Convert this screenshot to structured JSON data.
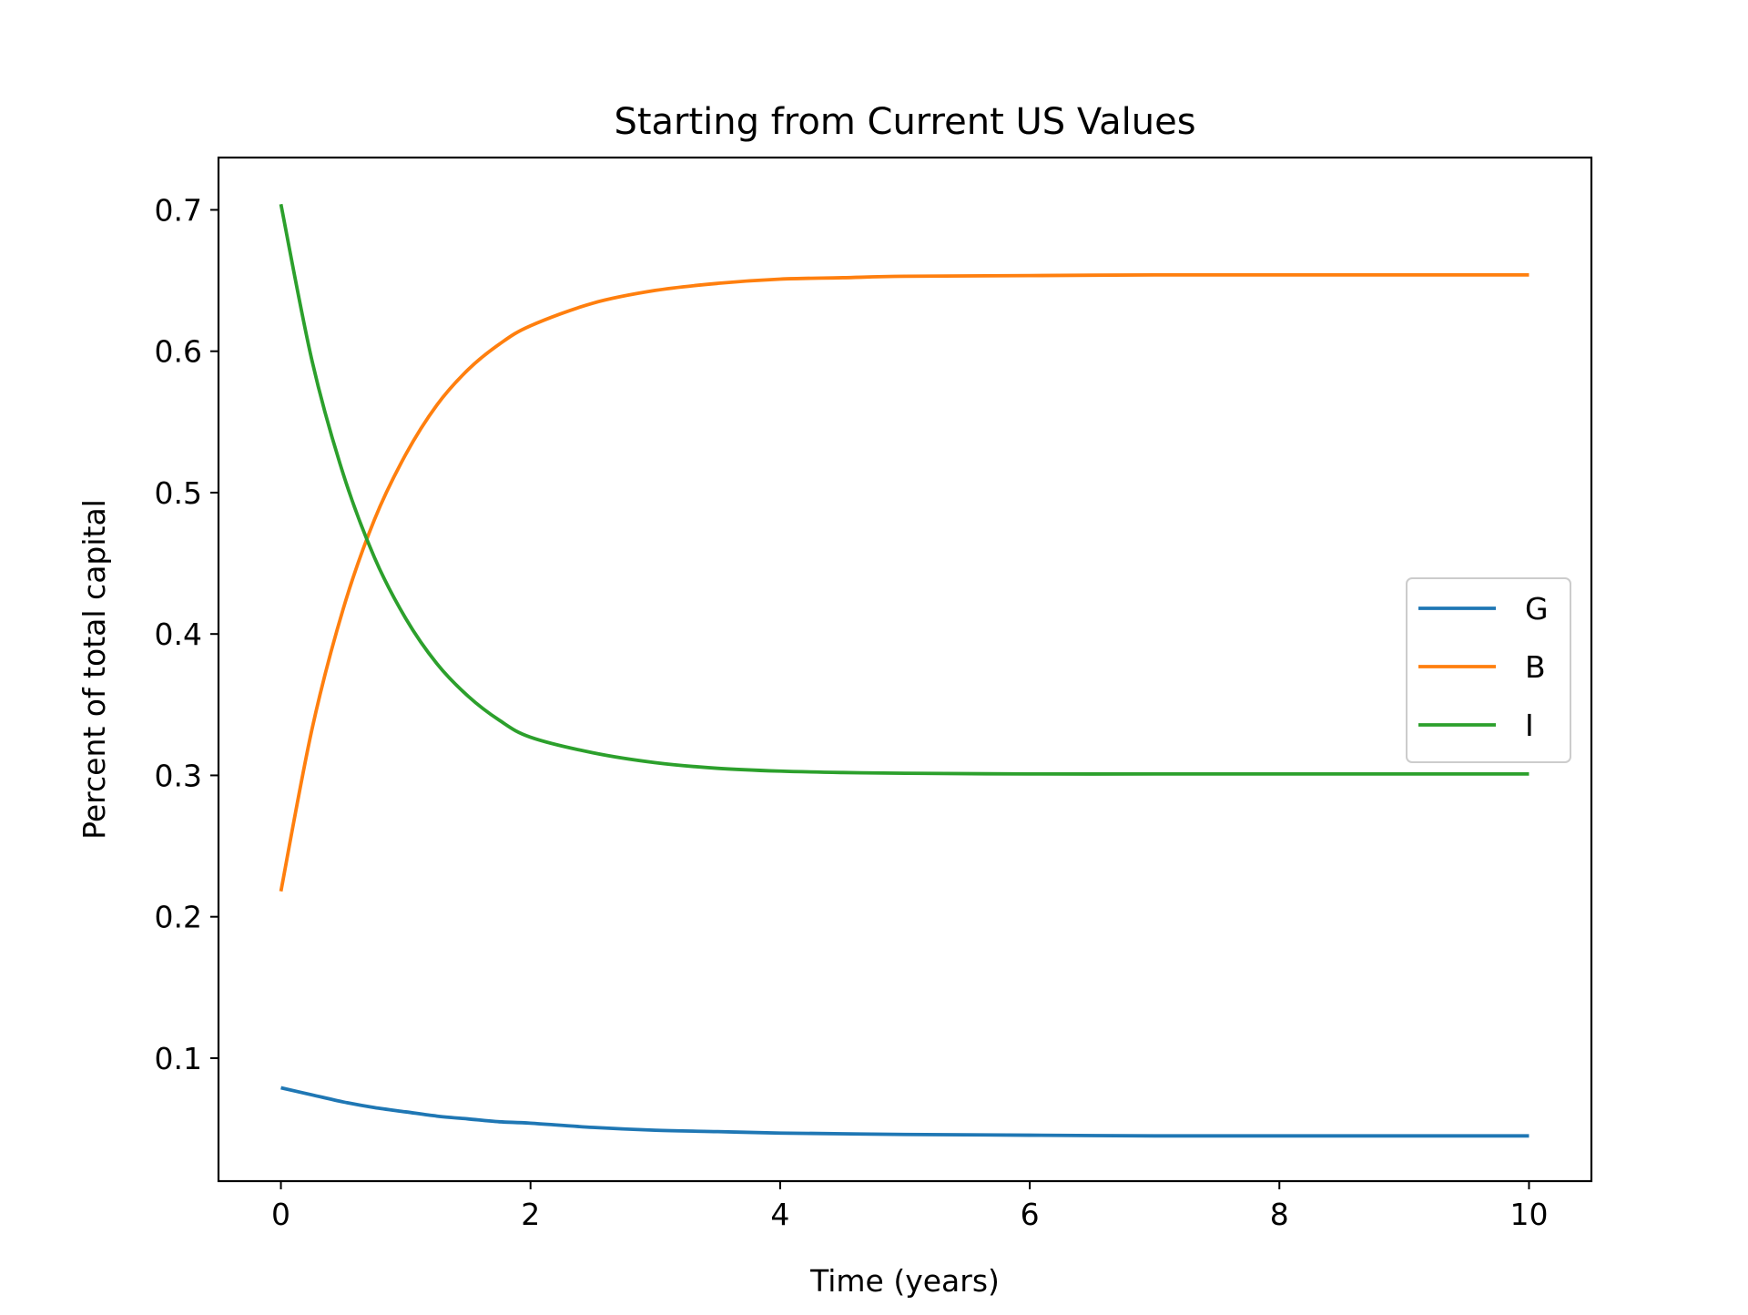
{
  "chart_data": {
    "type": "line",
    "title": "Starting from Current US Values",
    "xlabel": "Time (years)",
    "ylabel": "Percent of total capital",
    "xlim": [
      -0.5,
      10.5
    ],
    "ylim": [
      0.013,
      0.737
    ],
    "xticks": [
      0,
      2,
      4,
      6,
      8,
      10
    ],
    "yticks": [
      0.1,
      0.2,
      0.3,
      0.4,
      0.5,
      0.6,
      0.7
    ],
    "grid": false,
    "legend_position": "center-right",
    "x": [
      0,
      0.25,
      0.5,
      0.75,
      1,
      1.25,
      1.5,
      1.75,
      2,
      2.5,
      3,
      3.5,
      4,
      4.5,
      5,
      6,
      7,
      8,
      9,
      10
    ],
    "series": [
      {
        "name": "G",
        "color": "#1f77b4",
        "values": [
          0.079,
          0.074,
          0.069,
          0.065,
          0.062,
          0.059,
          0.057,
          0.055,
          0.054,
          0.051,
          0.049,
          0.048,
          0.047,
          0.0465,
          0.046,
          0.0455,
          0.045,
          0.045,
          0.045,
          0.045
        ]
      },
      {
        "name": "B",
        "color": "#ff7f0e",
        "values": [
          0.218,
          0.333,
          0.418,
          0.481,
          0.527,
          0.562,
          0.587,
          0.605,
          0.618,
          0.634,
          0.643,
          0.648,
          0.651,
          0.652,
          0.653,
          0.6535,
          0.654,
          0.654,
          0.654,
          0.654
        ]
      },
      {
        "name": "I",
        "color": "#2ca02c",
        "values": [
          0.704,
          0.593,
          0.513,
          0.454,
          0.411,
          0.379,
          0.356,
          0.339,
          0.327,
          0.316,
          0.309,
          0.305,
          0.303,
          0.302,
          0.3015,
          0.301,
          0.301,
          0.301,
          0.301,
          0.301
        ]
      }
    ]
  }
}
